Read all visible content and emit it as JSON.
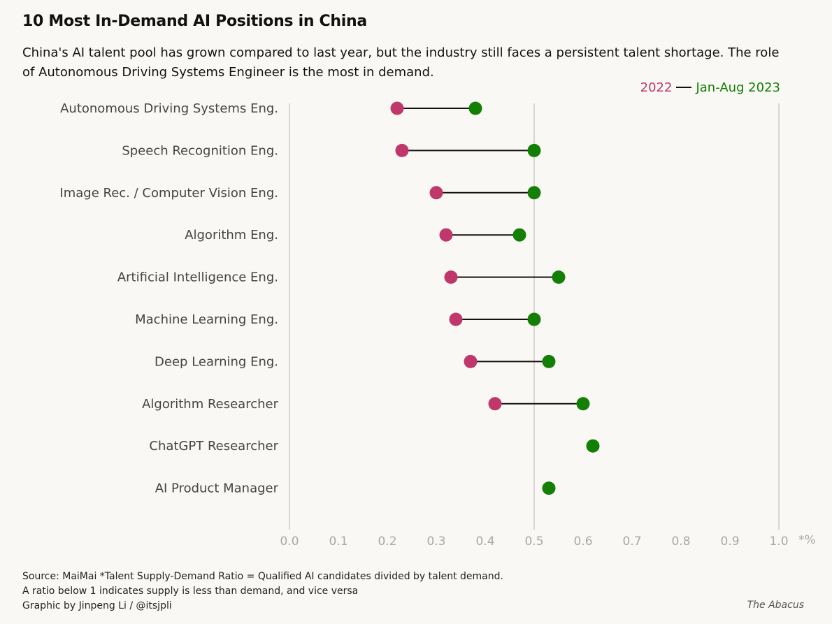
{
  "header": {
    "title": "10 Most In-Demand AI Positions in China",
    "subtitle": "China's AI talent pool has grown compared to last year, but the industry still faces a persistent talent shortage. The role of Autonomous Driving Systems Engineer is the most in demand."
  },
  "legend": {
    "label_2022": "2022",
    "label_2023": "Jan-Aug 2023"
  },
  "colors": {
    "series_2022": "#c0376b",
    "series_2023": "#137f05",
    "connector": "#111111",
    "gridline": "#d6d6d2",
    "tick_label": "#a8a8a8",
    "category_label": "#444444"
  },
  "chart_data": {
    "type": "dumbbell",
    "categories": [
      "Autonomous Driving Systems Eng.",
      "Speech Recognition Eng.",
      "Image Rec. / Computer Vision Eng.",
      "Algorithm Eng.",
      "Artificial Intelligence Eng.",
      "Machine Learning Eng.",
      "Deep Learning Eng.",
      "Algorithm Researcher",
      "ChatGPT Researcher",
      "AI Product Manager"
    ],
    "series": [
      {
        "name": "2022",
        "values": [
          0.22,
          0.23,
          0.3,
          0.32,
          0.33,
          0.34,
          0.37,
          0.42,
          null,
          null
        ]
      },
      {
        "name": "Jan-Aug 2023",
        "values": [
          0.38,
          0.5,
          0.5,
          0.47,
          0.55,
          0.5,
          0.53,
          0.6,
          0.62,
          0.53
        ]
      }
    ],
    "xlim": [
      0,
      1.0
    ],
    "x_ticks": [
      "0.0",
      "0.1",
      "0.2",
      "0.3",
      "0.4",
      "0.5",
      "0.6",
      "0.7",
      "0.8",
      "0.9",
      "1.0"
    ],
    "x_unit_label": "*%",
    "gridlines_at": [
      0,
      0.5,
      1.0
    ],
    "legend_position": "top-right"
  },
  "footer": {
    "line1": "Source: MaiMai  *Talent Supply-Demand Ratio = Qualified AI candidates divided by talent demand.",
    "line2": "A ratio below 1 indicates supply is less than demand, and vice versa",
    "line3": "Graphic by Jinpeng Li / @itsjpli",
    "credit": "The Abacus"
  }
}
